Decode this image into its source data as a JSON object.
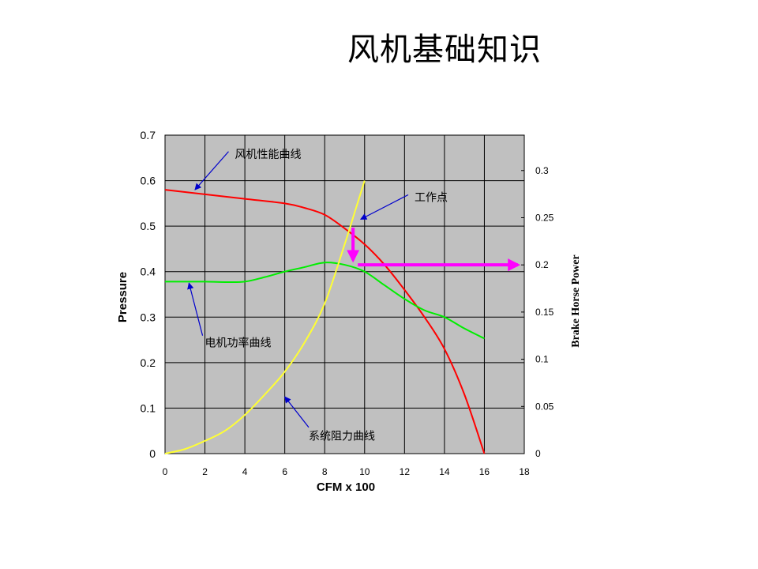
{
  "slide": {
    "title": "风机基础知识"
  },
  "colors": {
    "fan_curve": "#ff0000",
    "power_curve": "#00ee00",
    "system_curve": "#ffff33",
    "operating_arrows": "#ff00ff",
    "callout_arrows": "#0000cc",
    "plot_bg": "#c0c0c0"
  },
  "chart_data": {
    "type": "line",
    "xlabel": "CFM x 100",
    "ylabel": "Pressure",
    "y2label": "Brake Horse Power",
    "xlim": [
      0,
      18
    ],
    "ylim": [
      0,
      0.7
    ],
    "y2lim": [
      0,
      0.3375
    ],
    "grid": true,
    "x_ticks": [
      "0",
      "2",
      "4",
      "6",
      "8",
      "10",
      "12",
      "14",
      "16",
      "18"
    ],
    "y_ticks": [
      "0",
      "0.1",
      "0.2",
      "0.3",
      "0.4",
      "0.5",
      "0.6",
      "0.7"
    ],
    "y2_ticks": [
      "0",
      "0.05",
      "0.1",
      "0.15",
      "0.2",
      "0.25",
      "0.3"
    ],
    "series": [
      {
        "axis": "left",
        "points": [
          [
            0,
            0.58
          ],
          [
            2,
            0.57
          ],
          [
            4,
            0.56
          ],
          [
            6,
            0.55
          ],
          [
            7,
            0.54
          ],
          [
            8,
            0.525
          ],
          [
            9,
            0.495
          ],
          [
            10,
            0.46
          ],
          [
            11,
            0.415
          ],
          [
            12,
            0.36
          ],
          [
            13,
            0.3
          ],
          [
            14,
            0.23
          ],
          [
            15,
            0.13
          ],
          [
            16,
            0
          ]
        ]
      },
      {
        "axis": "left",
        "points": [
          [
            0,
            0.378
          ],
          [
            1,
            0.378
          ],
          [
            2,
            0.378
          ],
          [
            3,
            0.377
          ],
          [
            4,
            0.378
          ],
          [
            5,
            0.388
          ],
          [
            6,
            0.4
          ],
          [
            7,
            0.41
          ],
          [
            8,
            0.42
          ],
          [
            9,
            0.415
          ],
          [
            10,
            0.4
          ],
          [
            11,
            0.37
          ],
          [
            12,
            0.34
          ],
          [
            13,
            0.315
          ],
          [
            14,
            0.3
          ],
          [
            15,
            0.275
          ],
          [
            16,
            0.253
          ]
        ]
      },
      {
        "axis": "left",
        "points": [
          [
            0,
            0
          ],
          [
            1,
            0.01
          ],
          [
            2,
            0.028
          ],
          [
            3,
            0.05
          ],
          [
            4,
            0.085
          ],
          [
            5,
            0.13
          ],
          [
            6,
            0.18
          ],
          [
            7,
            0.245
          ],
          [
            8,
            0.33
          ],
          [
            9,
            0.46
          ],
          [
            9.5,
            0.53
          ],
          [
            10,
            0.6
          ]
        ]
      }
    ],
    "annotations": [
      {
        "text": "风机性能曲线",
        "x": 3.5,
        "y": 0.65,
        "arrow_to": [
          1.5,
          0.58
        ]
      },
      {
        "text": "工作点",
        "x": 12.5,
        "y": 0.555,
        "arrow_to": [
          9.8,
          0.515
        ]
      },
      {
        "text": "电机功率曲线",
        "x": 2,
        "y": 0.235,
        "arrow_to": [
          1.2,
          0.375
        ]
      },
      {
        "text": "系统阻力曲线",
        "x": 7.2,
        "y": 0.03,
        "arrow_to": [
          6,
          0.125
        ]
      }
    ],
    "operating_point": {
      "x": 9.5,
      "pressure": 0.5,
      "brake_horse_power": 0.2
    }
  }
}
